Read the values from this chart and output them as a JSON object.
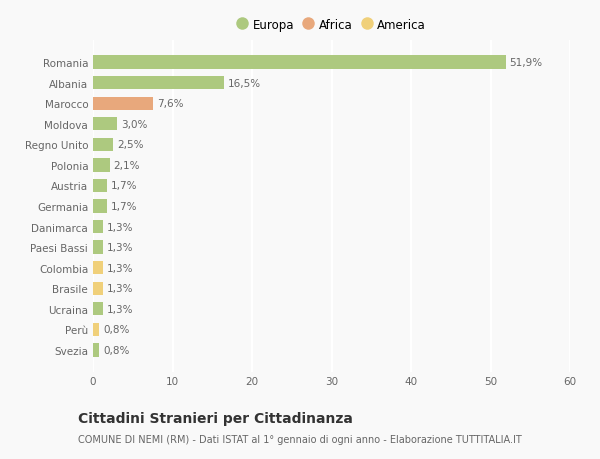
{
  "countries": [
    "Romania",
    "Albania",
    "Marocco",
    "Moldova",
    "Regno Unito",
    "Polonia",
    "Austria",
    "Germania",
    "Danimarca",
    "Paesi Bassi",
    "Colombia",
    "Brasile",
    "Ucraina",
    "Perù",
    "Svezia"
  ],
  "values": [
    51.9,
    16.5,
    7.6,
    3.0,
    2.5,
    2.1,
    1.7,
    1.7,
    1.3,
    1.3,
    1.3,
    1.3,
    1.3,
    0.8,
    0.8
  ],
  "labels": [
    "51,9%",
    "16,5%",
    "7,6%",
    "3,0%",
    "2,5%",
    "2,1%",
    "1,7%",
    "1,7%",
    "1,3%",
    "1,3%",
    "1,3%",
    "1,3%",
    "1,3%",
    "0,8%",
    "0,8%"
  ],
  "continents": [
    "Europa",
    "Europa",
    "Africa",
    "Europa",
    "Europa",
    "Europa",
    "Europa",
    "Europa",
    "Europa",
    "Europa",
    "America",
    "America",
    "Europa",
    "America",
    "Europa"
  ],
  "colors": {
    "Europa": "#adc97f",
    "Africa": "#e8a87c",
    "America": "#f0d07a"
  },
  "xlim": [
    0,
    60
  ],
  "xticks": [
    0,
    10,
    20,
    30,
    40,
    50,
    60
  ],
  "title": "Cittadini Stranieri per Cittadinanza",
  "subtitle": "COMUNE DI NEMI (RM) - Dati ISTAT al 1° gennaio di ogni anno - Elaborazione TUTTITALIA.IT",
  "background_color": "#f9f9f9",
  "grid_color": "#ffffff",
  "bar_height": 0.65,
  "label_fontsize": 7.5,
  "tick_fontsize": 7.5,
  "title_fontsize": 10,
  "subtitle_fontsize": 7,
  "legend_names": [
    "Europa",
    "Africa",
    "America"
  ],
  "legend_colors": [
    "#adc97f",
    "#e8a87c",
    "#f0d07a"
  ]
}
